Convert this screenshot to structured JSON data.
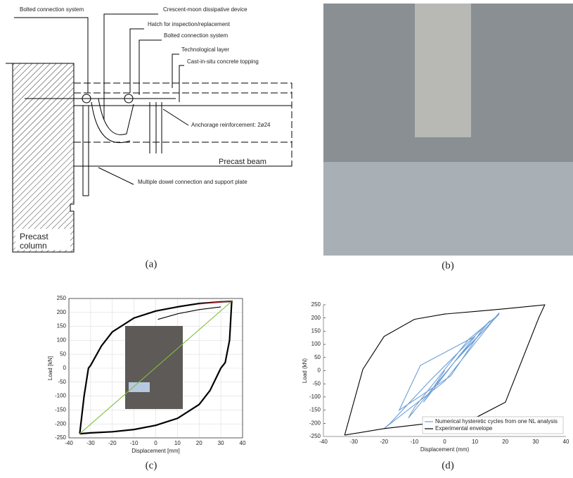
{
  "diagram": {
    "labels": [
      "Bolted connection system",
      "Crescent-moon dissipative device",
      "Hatch for inspection/replacement",
      "Bolted connection system",
      "Technological layer",
      "Cast-in-situ concrete topping",
      "Anchorage reinforcement: 2ø24",
      "Precast beam",
      "Multiple dowel connection and support plate"
    ],
    "column_label": [
      "Precast",
      "column"
    ]
  },
  "captions": [
    "(a)",
    "(b)",
    "(c)",
    "(d)"
  ],
  "chart_data": [
    {
      "type": "line",
      "xlabel": "Displacement [mm]",
      "ylabel": "Load [kN]",
      "xlim": [
        -40,
        40
      ],
      "ylim": [
        -250,
        250
      ],
      "xticks": [
        -40,
        -30,
        -20,
        -10,
        0,
        10,
        20,
        30,
        40
      ],
      "yticks": [
        -250,
        -200,
        -150,
        -100,
        -50,
        0,
        50,
        100,
        150,
        200,
        250
      ],
      "grid": true,
      "series": [
        {
          "color": "#000000",
          "x": [
            -35,
            -33,
            -31,
            -30,
            -25,
            -20,
            -10,
            0,
            10,
            20,
            30,
            35,
            34,
            32,
            30,
            25,
            20,
            10,
            0,
            -10,
            -20,
            -30,
            -35
          ],
          "values": [
            -235,
            -100,
            0,
            10,
            80,
            130,
            180,
            205,
            220,
            232,
            238,
            240,
            100,
            20,
            0,
            -80,
            -130,
            -180,
            -205,
            -220,
            -228,
            -232,
            -235
          ]
        },
        {
          "color": "#000000",
          "x": [
            1,
            10,
            20,
            30
          ],
          "values": [
            175,
            195,
            210,
            220
          ]
        },
        {
          "color": "#7fbf3f",
          "x": [
            -35,
            35
          ],
          "values": [
            -235,
            240
          ]
        },
        {
          "color": "#d62728",
          "x": [
            20,
            28,
            35
          ],
          "values": [
            230,
            236,
            240
          ]
        }
      ]
    },
    {
      "type": "line",
      "xlabel": "Displacement (mm)",
      "ylabel": "Load (kN)",
      "xlim": [
        -40,
        40
      ],
      "ylim": [
        -250,
        250
      ],
      "xticks": [
        -40,
        -30,
        -20,
        -10,
        0,
        10,
        20,
        30,
        40
      ],
      "yticks": [
        -250,
        -200,
        -150,
        -100,
        -50,
        0,
        50,
        100,
        150,
        200,
        250
      ],
      "grid": false,
      "legend": "lower right",
      "series": [
        {
          "name": "Numerical hysteretic cycles from one NL analysis",
          "color": "#6e9fd6",
          "x": [
            -3,
            5,
            10,
            -8,
            -15,
            2,
            12,
            15,
            -5,
            -18,
            -20,
            0,
            18,
            15,
            3,
            -12,
            -10,
            8,
            18,
            5,
            -7,
            0
          ],
          "values": [
            -60,
            60,
            130,
            20,
            -150,
            -20,
            150,
            190,
            -40,
            -200,
            -220,
            -40,
            220,
            180,
            30,
            -180,
            -140,
            120,
            215,
            60,
            -120,
            0
          ]
        },
        {
          "name": "Experimental envelope",
          "color": "#000000",
          "x": [
            -33,
            -27,
            -20,
            -10,
            0,
            10,
            20,
            33,
            31,
            20,
            10,
            -20,
            -33
          ],
          "values": [
            -245,
            5,
            130,
            195,
            215,
            225,
            235,
            250,
            200,
            -120,
            -180,
            -220,
            -245
          ]
        }
      ]
    }
  ]
}
